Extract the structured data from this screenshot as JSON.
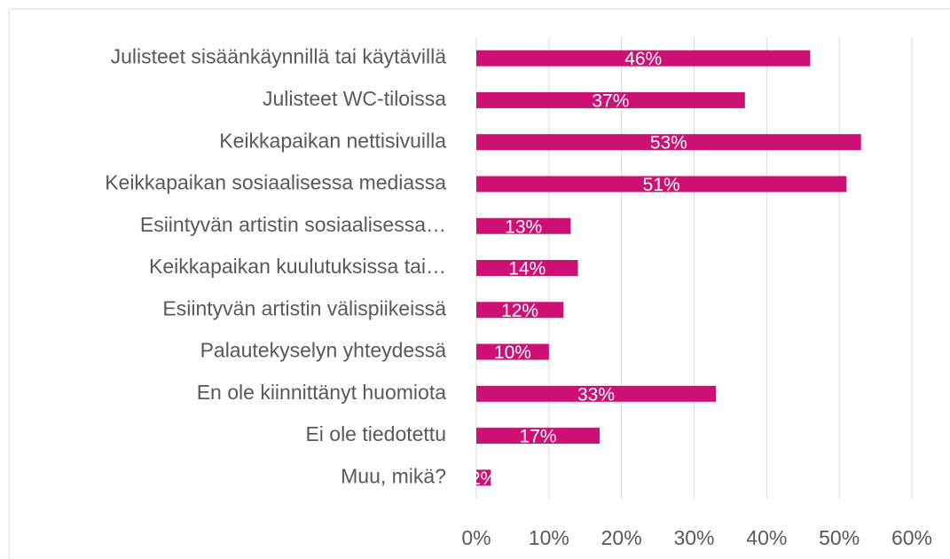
{
  "chart_data": {
    "type": "bar",
    "orientation": "horizontal",
    "categories": [
      "Julisteet sisäänkäynnillä tai käytävillä",
      "Julisteet WC-tiloissa",
      "Keikkapaikan nettisivuilla",
      "Keikkapaikan sosiaalisessa mediassa",
      "Esiintyvän artistin sosiaalisessa…",
      "Keikkapaikan kuulutuksissa tai…",
      "Esiintyvän artistin välispiikeissä",
      "Palautekyselyn yhteydessä",
      "En ole kiinnittänyt huomiota",
      "Ei ole tiedotettu",
      "Muu, mikä?"
    ],
    "values": [
      46,
      37,
      53,
      51,
      13,
      14,
      12,
      10,
      33,
      17,
      2
    ],
    "value_labels": [
      "46%",
      "37%",
      "53%",
      "51%",
      "13%",
      "14%",
      "12%",
      "10%",
      "33%",
      "17%",
      "2%"
    ],
    "color": "#cc1074",
    "xlim": [
      0,
      60
    ],
    "xticks": [
      {
        "value": 0,
        "label": "0%"
      },
      {
        "value": 10,
        "label": "10%"
      },
      {
        "value": 20,
        "label": "20%"
      },
      {
        "value": 30,
        "label": "30%"
      },
      {
        "value": 40,
        "label": "40%"
      },
      {
        "value": 50,
        "label": "50%"
      },
      {
        "value": 60,
        "label": "60%"
      }
    ],
    "grid": true
  }
}
